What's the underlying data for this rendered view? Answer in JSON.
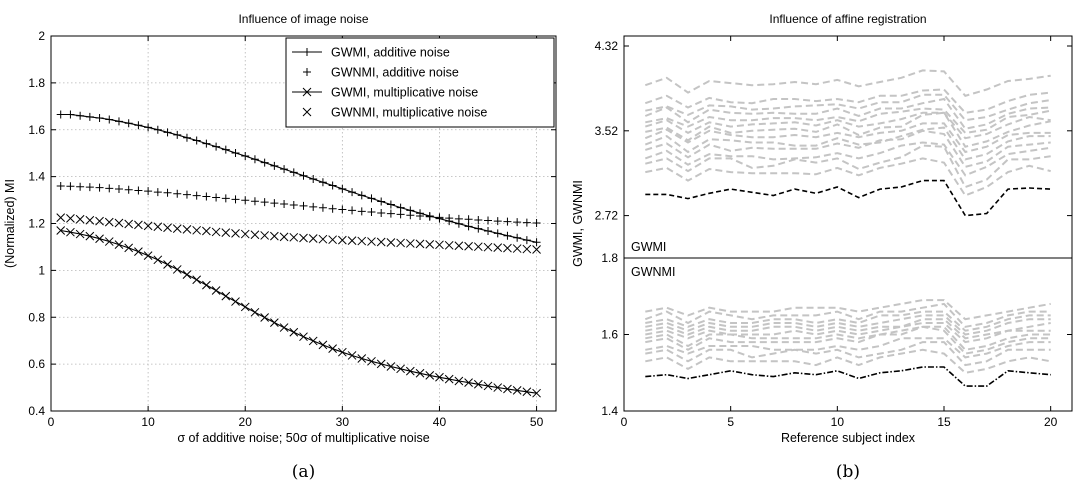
{
  "chart_data": [
    {
      "type": "line",
      "title": "Influence of image noise",
      "xlabel": "σ of additive noise; 50σ of multiplicative noise",
      "ylabel": "(Normalized) MI",
      "caption": "(a)",
      "xlim": [
        0,
        52
      ],
      "ylim": [
        0.4,
        2
      ],
      "xticks": [
        "0",
        "10",
        "20",
        "30",
        "40",
        "50"
      ],
      "yticks": [
        "0.4",
        "0.6",
        "0.8",
        "1",
        "1.2",
        "1.4",
        "1.6",
        "1.8",
        "2"
      ],
      "grid": true,
      "legend_position": "top-right",
      "x": [
        1,
        2,
        3,
        4,
        5,
        6,
        7,
        8,
        9,
        10,
        11,
        12,
        13,
        14,
        15,
        16,
        17,
        18,
        19,
        20,
        21,
        22,
        23,
        24,
        25,
        26,
        27,
        28,
        29,
        30,
        31,
        32,
        33,
        34,
        35,
        36,
        37,
        38,
        39,
        40,
        41,
        42,
        43,
        44,
        45,
        46,
        47,
        48,
        49,
        50
      ],
      "series": [
        {
          "name": "GWMI, additive noise",
          "marker": "+",
          "line": true,
          "values": [
            1.665,
            1.665,
            1.66,
            1.655,
            1.65,
            1.644,
            1.636,
            1.628,
            1.619,
            1.61,
            1.6,
            1.589,
            1.578,
            1.566,
            1.554,
            1.541,
            1.528,
            1.515,
            1.501,
            1.488,
            1.474,
            1.46,
            1.446,
            1.432,
            1.418,
            1.404,
            1.39,
            1.376,
            1.362,
            1.348,
            1.334,
            1.32,
            1.307,
            1.294,
            1.281,
            1.268,
            1.256,
            1.244,
            1.232,
            1.221,
            1.21,
            1.199,
            1.188,
            1.178,
            1.168,
            1.158,
            1.148,
            1.139,
            1.129,
            1.12
          ]
        },
        {
          "name": "GWNMI, additive noise",
          "marker": "+",
          "line": false,
          "values": [
            1.36,
            1.359,
            1.357,
            1.355,
            1.353,
            1.35,
            1.347,
            1.344,
            1.341,
            1.338,
            1.334,
            1.331,
            1.327,
            1.323,
            1.319,
            1.315,
            1.311,
            1.307,
            1.303,
            1.299,
            1.295,
            1.291,
            1.287,
            1.283,
            1.279,
            1.275,
            1.271,
            1.267,
            1.263,
            1.26,
            1.256,
            1.252,
            1.249,
            1.245,
            1.242,
            1.239,
            1.235,
            1.232,
            1.229,
            1.226,
            1.223,
            1.22,
            1.218,
            1.215,
            1.213,
            1.21,
            1.208,
            1.206,
            1.204,
            1.202
          ]
        },
        {
          "name": "GWMI, multiplicative noise",
          "marker": "x",
          "line": true,
          "values": [
            1.17,
            1.163,
            1.155,
            1.146,
            1.135,
            1.123,
            1.11,
            1.096,
            1.08,
            1.063,
            1.045,
            1.025,
            1.004,
            0.982,
            0.96,
            0.937,
            0.914,
            0.89,
            0.867,
            0.844,
            0.821,
            0.799,
            0.777,
            0.756,
            0.736,
            0.717,
            0.699,
            0.682,
            0.666,
            0.651,
            0.637,
            0.624,
            0.612,
            0.601,
            0.59,
            0.58,
            0.57,
            0.561,
            0.552,
            0.544,
            0.536,
            0.528,
            0.521,
            0.514,
            0.507,
            0.5,
            0.494,
            0.488,
            0.482,
            0.476
          ]
        },
        {
          "name": "GWNMI, multiplicative noise",
          "marker": "x",
          "line": false,
          "values": [
            1.225,
            1.222,
            1.218,
            1.214,
            1.21,
            1.206,
            1.202,
            1.198,
            1.194,
            1.19,
            1.186,
            1.182,
            1.178,
            1.175,
            1.171,
            1.168,
            1.164,
            1.161,
            1.158,
            1.155,
            1.152,
            1.149,
            1.146,
            1.143,
            1.141,
            1.138,
            1.136,
            1.133,
            1.131,
            1.129,
            1.127,
            1.125,
            1.123,
            1.121,
            1.119,
            1.117,
            1.115,
            1.113,
            1.111,
            1.109,
            1.107,
            1.105,
            1.103,
            1.101,
            1.099,
            1.097,
            1.095,
            1.093,
            1.091,
            1.089
          ]
        }
      ]
    },
    {
      "type": "line",
      "title": "Influence of affine registration",
      "xlabel": "Reference subject index",
      "ylabel": "GWMI, GWNMI",
      "caption": "(b)",
      "xlim": [
        0,
        21
      ],
      "xticks": [
        "0",
        "5",
        "10",
        "15",
        "20"
      ],
      "panel_labels": [
        "GWMI",
        "GWNMI"
      ],
      "upper_panel": {
        "ylim": [
          2.32,
          4.32
        ],
        "yticks": [
          "2.72",
          "3.52",
          "4.32"
        ],
        "best_registration": [
          2.92,
          2.92,
          2.88,
          2.93,
          2.97,
          2.94,
          2.91,
          2.97,
          2.93,
          2.99,
          2.89,
          2.97,
          2.99,
          3.05,
          3.05,
          2.72,
          2.74,
          2.97,
          2.98,
          2.97
        ],
        "other_registrations": [
          [
            3.13,
            3.17,
            3.05,
            3.16,
            3.13,
            3.12,
            3.12,
            3.12,
            3.11,
            3.17,
            3.1,
            3.17,
            3.21,
            3.26,
            3.22,
            2.91,
            2.99,
            3.13,
            3.19,
            3.14
          ],
          [
            3.21,
            3.26,
            3.14,
            3.26,
            3.26,
            3.17,
            3.19,
            3.25,
            3.22,
            3.26,
            3.16,
            3.22,
            3.27,
            3.38,
            3.37,
            2.99,
            3.06,
            3.25,
            3.25,
            3.28
          ],
          [
            3.26,
            3.33,
            3.2,
            3.3,
            3.28,
            3.28,
            3.25,
            3.26,
            3.27,
            3.31,
            3.26,
            3.31,
            3.38,
            3.41,
            3.39,
            3.1,
            3.18,
            3.3,
            3.33,
            3.36
          ],
          [
            3.34,
            3.4,
            3.27,
            3.39,
            3.33,
            3.36,
            3.35,
            3.35,
            3.35,
            3.4,
            3.36,
            3.43,
            3.44,
            3.52,
            3.49,
            3.18,
            3.23,
            3.37,
            3.39,
            3.41
          ],
          [
            3.39,
            3.47,
            3.32,
            3.44,
            3.43,
            3.41,
            3.41,
            3.38,
            3.38,
            3.45,
            3.39,
            3.41,
            3.47,
            3.53,
            3.55,
            3.25,
            3.3,
            3.42,
            3.47,
            3.47
          ],
          [
            3.45,
            3.53,
            3.41,
            3.52,
            3.48,
            3.46,
            3.46,
            3.48,
            3.46,
            3.5,
            3.46,
            3.5,
            3.52,
            3.59,
            3.59,
            3.32,
            3.37,
            3.48,
            3.5,
            3.5
          ],
          [
            3.51,
            3.55,
            3.43,
            3.56,
            3.5,
            3.52,
            3.53,
            3.54,
            3.51,
            3.58,
            3.48,
            3.55,
            3.56,
            3.67,
            3.69,
            3.37,
            3.42,
            3.51,
            3.57,
            3.61
          ],
          [
            3.56,
            3.62,
            3.5,
            3.6,
            3.56,
            3.58,
            3.59,
            3.6,
            3.57,
            3.62,
            3.56,
            3.59,
            3.63,
            3.69,
            3.69,
            3.45,
            3.49,
            3.58,
            3.65,
            3.62
          ],
          [
            3.6,
            3.64,
            3.56,
            3.65,
            3.62,
            3.62,
            3.64,
            3.64,
            3.62,
            3.65,
            3.61,
            3.68,
            3.7,
            3.73,
            3.72,
            3.5,
            3.53,
            3.65,
            3.67,
            3.71
          ],
          [
            3.66,
            3.74,
            3.6,
            3.72,
            3.69,
            3.68,
            3.69,
            3.68,
            3.68,
            3.73,
            3.66,
            3.73,
            3.73,
            3.78,
            3.82,
            3.54,
            3.58,
            3.68,
            3.73,
            3.74
          ],
          [
            3.71,
            3.75,
            3.67,
            3.76,
            3.75,
            3.72,
            3.73,
            3.75,
            3.76,
            3.77,
            3.73,
            3.79,
            3.79,
            3.86,
            3.86,
            3.62,
            3.65,
            3.72,
            3.78,
            3.81
          ],
          [
            3.78,
            3.85,
            3.74,
            3.83,
            3.79,
            3.78,
            3.82,
            3.82,
            3.8,
            3.82,
            3.79,
            3.85,
            3.85,
            3.9,
            3.91,
            3.69,
            3.72,
            3.8,
            3.86,
            3.88
          ],
          [
            3.95,
            4.02,
            3.88,
            3.99,
            3.97,
            3.95,
            3.96,
            3.98,
            3.96,
            4.0,
            3.94,
            3.98,
            4.02,
            4.09,
            4.08,
            3.85,
            3.91,
            3.99,
            4.01,
            4.04
          ]
        ]
      },
      "lower_panel": {
        "ylim": [
          1.4,
          1.8
        ],
        "yticks": [
          "1.4",
          "1.6",
          "1.8"
        ],
        "best_registration": [
          1.49,
          1.495,
          1.485,
          1.495,
          1.505,
          1.495,
          1.49,
          1.5,
          1.495,
          1.505,
          1.485,
          1.5,
          1.505,
          1.515,
          1.515,
          1.465,
          1.465,
          1.505,
          1.5,
          1.495
        ],
        "other_registrations": [
          [
            1.53,
            1.54,
            1.51,
            1.54,
            1.53,
            1.53,
            1.53,
            1.53,
            1.52,
            1.54,
            1.52,
            1.54,
            1.55,
            1.56,
            1.55,
            1.5,
            1.51,
            1.53,
            1.54,
            1.53
          ],
          [
            1.55,
            1.56,
            1.53,
            1.56,
            1.56,
            1.54,
            1.55,
            1.56,
            1.55,
            1.56,
            1.54,
            1.55,
            1.56,
            1.58,
            1.58,
            1.52,
            1.53,
            1.56,
            1.56,
            1.56
          ],
          [
            1.56,
            1.57,
            1.55,
            1.57,
            1.57,
            1.57,
            1.56,
            1.56,
            1.56,
            1.57,
            1.56,
            1.57,
            1.59,
            1.59,
            1.59,
            1.54,
            1.55,
            1.57,
            1.58,
            1.58
          ],
          [
            1.58,
            1.59,
            1.56,
            1.59,
            1.58,
            1.58,
            1.58,
            1.58,
            1.58,
            1.59,
            1.58,
            1.6,
            1.6,
            1.62,
            1.61,
            1.55,
            1.56,
            1.58,
            1.59,
            1.59
          ],
          [
            1.59,
            1.6,
            1.57,
            1.6,
            1.6,
            1.59,
            1.59,
            1.59,
            1.59,
            1.6,
            1.59,
            1.6,
            1.61,
            1.62,
            1.62,
            1.56,
            1.57,
            1.59,
            1.6,
            1.6
          ],
          [
            1.6,
            1.61,
            1.59,
            1.61,
            1.6,
            1.6,
            1.6,
            1.61,
            1.6,
            1.61,
            1.6,
            1.61,
            1.62,
            1.63,
            1.63,
            1.58,
            1.59,
            1.61,
            1.61,
            1.61
          ],
          [
            1.61,
            1.62,
            1.6,
            1.62,
            1.61,
            1.61,
            1.62,
            1.62,
            1.61,
            1.62,
            1.61,
            1.62,
            1.62,
            1.64,
            1.64,
            1.59,
            1.6,
            1.61,
            1.62,
            1.63
          ],
          [
            1.62,
            1.63,
            1.61,
            1.63,
            1.62,
            1.62,
            1.63,
            1.63,
            1.62,
            1.63,
            1.62,
            1.63,
            1.64,
            1.65,
            1.65,
            1.6,
            1.61,
            1.63,
            1.64,
            1.64
          ],
          [
            1.63,
            1.64,
            1.62,
            1.64,
            1.63,
            1.63,
            1.64,
            1.64,
            1.63,
            1.64,
            1.63,
            1.65,
            1.65,
            1.66,
            1.66,
            1.61,
            1.62,
            1.64,
            1.65,
            1.65
          ],
          [
            1.64,
            1.66,
            1.63,
            1.66,
            1.65,
            1.64,
            1.65,
            1.65,
            1.65,
            1.66,
            1.64,
            1.66,
            1.66,
            1.67,
            1.68,
            1.62,
            1.63,
            1.65,
            1.66,
            1.66
          ],
          [
            1.66,
            1.67,
            1.65,
            1.67,
            1.66,
            1.66,
            1.66,
            1.67,
            1.67,
            1.67,
            1.66,
            1.67,
            1.68,
            1.69,
            1.69,
            1.64,
            1.65,
            1.66,
            1.67,
            1.68
          ]
        ]
      }
    }
  ]
}
